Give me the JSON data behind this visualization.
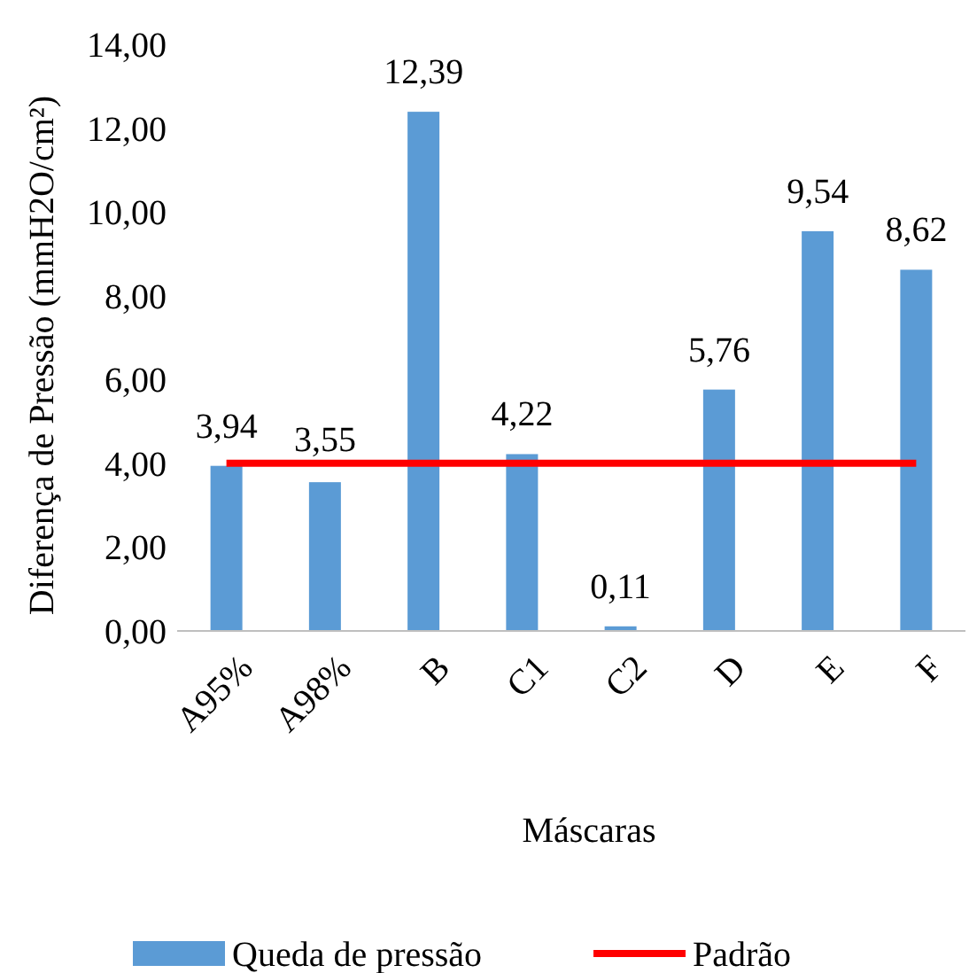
{
  "chart_data": {
    "type": "bar",
    "xlabel": "Máscaras",
    "ylabel": "Diferença de Pressão (mmH2O/cm²)",
    "categories": [
      "A95%",
      "A98%",
      "B",
      "C1",
      "C2",
      "D",
      "E",
      "F"
    ],
    "series": [
      {
        "name": "Queda de pressão",
        "color": "#5b9bd5",
        "values": [
          3.94,
          3.55,
          12.39,
          4.22,
          0.11,
          5.76,
          9.54,
          8.62
        ],
        "value_labels": [
          "3,94",
          "3,55",
          "12,39",
          "4,22",
          "0,11",
          "5,76",
          "9,54",
          "8,62"
        ]
      },
      {
        "name": "Padrão",
        "type": "line",
        "color": "#ff0000",
        "values": [
          4,
          4,
          4,
          4,
          4,
          4,
          4,
          4
        ]
      }
    ],
    "ylim": [
      0,
      14
    ],
    "yticks": [
      {
        "value": 0,
        "label": "0,00"
      },
      {
        "value": 2,
        "label": "2,00"
      },
      {
        "value": 4,
        "label": "4,00"
      },
      {
        "value": 6,
        "label": "6,00"
      },
      {
        "value": 8,
        "label": "8,00"
      },
      {
        "value": 10,
        "label": "10,00"
      },
      {
        "value": 12,
        "label": "12,00"
      },
      {
        "value": 14,
        "label": "14,00"
      }
    ],
    "grid": false,
    "legend": "bottom",
    "marker": "none"
  }
}
